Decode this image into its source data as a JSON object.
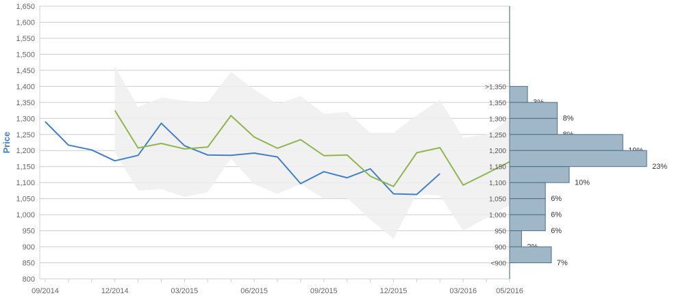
{
  "colors": {
    "series_blue": "#3f7fd0",
    "series_green": "#8db64b",
    "band": "#efefef",
    "hist_fill": "#9fb7c7",
    "hist_stroke": "#4d6f85",
    "grid": "#cccccc",
    "axis_title": "#3f7fd0"
  },
  "chart_data": {
    "type": "line",
    "ylabel": "Price",
    "ylim": [
      800,
      1650
    ],
    "y_ticks": [
      "800",
      "850",
      "900",
      "950",
      "1,000",
      "1,050",
      "1,100",
      "1,150",
      "1,200",
      "1,250",
      "1,300",
      "1,350",
      "1,400",
      "1,450",
      "1,500",
      "1,550",
      "1,600",
      "1,650"
    ],
    "x_ticks": [
      "09/2014",
      "12/2014",
      "03/2015",
      "06/2015",
      "09/2015",
      "12/2015",
      "03/2016",
      "05/2016"
    ],
    "x_tick_months": [
      0,
      3,
      6,
      9,
      12,
      15,
      18,
      20
    ],
    "xlim_months": [
      0,
      20
    ],
    "grid": true,
    "series": [
      {
        "color": "#3f7fd0",
        "months": [
          0,
          1,
          2,
          3,
          4,
          5,
          6,
          7,
          8,
          9,
          10,
          11,
          12,
          13,
          14,
          15,
          16,
          17
        ],
        "values": [
          1290,
          1217,
          1202,
          1168,
          1185,
          1285,
          1215,
          1186,
          1185,
          1192,
          1180,
          1097,
          1134,
          1115,
          1143,
          1065,
          1063,
          1128
        ]
      },
      {
        "color": "#8db64b",
        "months": [
          3,
          4,
          5,
          6,
          7,
          8,
          9,
          10,
          11,
          12,
          13,
          14,
          15,
          16,
          17,
          18,
          19,
          20
        ],
        "values": [
          1325,
          1208,
          1222,
          1205,
          1211,
          1309,
          1242,
          1207,
          1234,
          1184,
          1186,
          1120,
          1088,
          1193,
          1209,
          1092,
          1128,
          1165
        ]
      }
    ],
    "band": {
      "months": [
        3,
        4,
        5,
        6,
        7,
        8,
        9,
        10,
        11,
        12,
        13,
        14,
        15,
        16,
        17,
        18,
        19,
        20
      ],
      "upper": [
        1462,
        1335,
        1365,
        1355,
        1350,
        1445,
        1390,
        1345,
        1370,
        1315,
        1320,
        1255,
        1255,
        1310,
        1358,
        1240,
        1250,
        1298
      ],
      "lower": [
        1195,
        1075,
        1080,
        1055,
        1070,
        1175,
        1095,
        1065,
        1095,
        1050,
        1052,
        985,
        925,
        1065,
        1060,
        950,
        990,
        1030
      ]
    },
    "histogram": {
      "categories": [
        ">1,350",
        "1,350",
        "1,300",
        "1,250",
        "1,200",
        "1,150",
        "1,100",
        "1,050",
        "1,000",
        "950",
        "900",
        "<900"
      ],
      "labels": [
        "3%",
        "8%",
        "8%",
        "19%",
        "23%",
        "10%",
        "6%",
        "6%",
        "6%",
        "2%",
        "7%"
      ],
      "values": [
        3,
        8,
        8,
        19,
        23,
        10,
        6,
        6,
        6,
        2,
        7
      ]
    }
  }
}
